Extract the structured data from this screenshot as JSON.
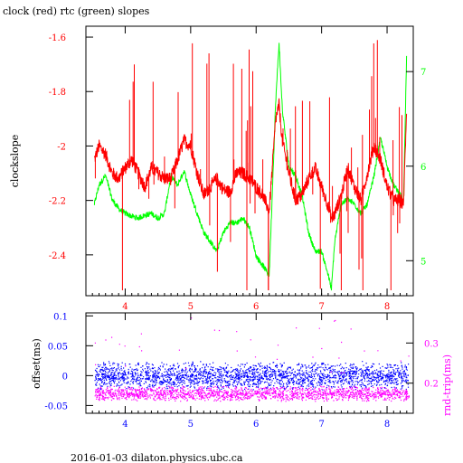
{
  "header": {
    "title": "clock (red) rtc (green) slopes",
    "footer": "2016-01-03  dilaton.physics.ubc.ca"
  },
  "colors": {
    "clock": "#ff0000",
    "rtc": "#00ff00",
    "offset": "#0000ff",
    "roundtrip": "#ff00ff",
    "left_axis_top": "#ff0000",
    "left_axis_bottom": "#0000ff",
    "x_axis_top": "#ff0000",
    "x_axis_bottom": "#0000ff"
  },
  "chart_data": [
    {
      "type": "line",
      "title": "clock (red) rtc (green) slopes",
      "xlabel": "",
      "ylabel": "clockslope",
      "xlim": [
        3.4,
        8.4
      ],
      "ylim": [
        -2.55,
        -1.56
      ],
      "y2lim": [
        4.63,
        7.48
      ],
      "x_ticks": [
        4,
        5,
        6,
        7,
        8
      ],
      "y_ticks": [
        -1.6,
        -1.8,
        -2,
        -2.2,
        -2.4
      ],
      "y2_ticks": [
        5,
        6,
        7
      ],
      "series": [
        {
          "name": "clock",
          "axis": "left",
          "x": [
            3.53,
            3.6,
            3.7,
            3.8,
            3.9,
            4.0,
            4.1,
            4.2,
            4.3,
            4.4,
            4.5,
            4.6,
            4.7,
            4.8,
            4.9,
            5.0,
            5.1,
            5.2,
            5.3,
            5.4,
            5.5,
            5.6,
            5.7,
            5.8,
            5.9,
            6.0,
            6.1,
            6.2,
            6.3,
            6.35,
            6.4,
            6.5,
            6.6,
            6.7,
            6.8,
            6.9,
            7.0,
            7.1,
            7.15,
            7.2,
            7.3,
            7.4,
            7.5,
            7.6,
            7.7,
            7.8,
            7.9,
            8.0,
            8.1,
            8.2,
            8.25,
            8.3
          ],
          "y": [
            -2.05,
            -2.0,
            -2.03,
            -2.1,
            -2.12,
            -2.08,
            -2.05,
            -2.1,
            -2.15,
            -2.08,
            -2.1,
            -2.12,
            -2.12,
            -2.05,
            -1.98,
            -2.0,
            -2.1,
            -2.18,
            -2.15,
            -2.12,
            -2.16,
            -2.17,
            -2.1,
            -2.1,
            -2.12,
            -2.15,
            -2.18,
            -2.24,
            -1.9,
            -1.85,
            -1.98,
            -2.1,
            -2.2,
            -2.18,
            -2.12,
            -2.08,
            -2.15,
            -2.22,
            -2.27,
            -2.25,
            -2.18,
            -2.08,
            -2.15,
            -2.2,
            -2.1,
            -2.0,
            -2.05,
            -2.15,
            -2.2,
            -2.2,
            -2.22,
            -1.85
          ]
        },
        {
          "name": "rtc",
          "axis": "right",
          "x": [
            3.53,
            3.6,
            3.7,
            3.8,
            3.9,
            4.0,
            4.1,
            4.2,
            4.3,
            4.4,
            4.5,
            4.6,
            4.7,
            4.8,
            4.9,
            5.0,
            5.1,
            5.2,
            5.3,
            5.4,
            5.5,
            5.6,
            5.7,
            5.8,
            5.9,
            6.0,
            6.1,
            6.2,
            6.3,
            6.35,
            6.4,
            6.5,
            6.6,
            6.7,
            6.8,
            6.9,
            7.0,
            7.1,
            7.15,
            7.2,
            7.3,
            7.4,
            7.5,
            7.6,
            7.7,
            7.8,
            7.9,
            8.0,
            8.1,
            8.2,
            8.25,
            8.3
          ],
          "y": [
            5.6,
            5.8,
            5.9,
            5.65,
            5.55,
            5.5,
            5.47,
            5.45,
            5.48,
            5.5,
            5.45,
            5.5,
            5.9,
            5.8,
            5.95,
            5.7,
            5.5,
            5.3,
            5.2,
            5.1,
            5.3,
            5.4,
            5.4,
            5.45,
            5.35,
            5.05,
            4.95,
            4.85,
            6.7,
            7.3,
            6.6,
            6.0,
            5.9,
            5.7,
            5.3,
            5.1,
            5.1,
            4.85,
            4.7,
            5.2,
            5.6,
            5.65,
            5.6,
            5.5,
            5.6,
            5.9,
            6.3,
            6.0,
            5.8,
            5.7,
            5.6,
            7.2
          ]
        }
      ]
    },
    {
      "type": "scatter",
      "title": "",
      "xlabel": "",
      "ylabel": "offset(ms)",
      "y2label": "rnd-trip(ms)",
      "xlim": [
        3.4,
        8.4
      ],
      "ylim": [
        -0.063,
        0.105
      ],
      "y2lim": [
        0.125,
        0.375
      ],
      "x_ticks": [
        4,
        5,
        6,
        7,
        8
      ],
      "y_ticks": [
        0.1,
        0.05,
        0,
        -0.05
      ],
      "y2_ticks": [
        0.3,
        0.2
      ],
      "series": [
        {
          "name": "offset",
          "axis": "left",
          "x_range": [
            3.53,
            8.33
          ],
          "y_center": 0.0,
          "y_spread": 0.025,
          "point_count": 2400
        },
        {
          "name": "rnd-trip",
          "axis": "right",
          "x_range": [
            3.53,
            8.33
          ],
          "y_center": 0.175,
          "y_spread": 0.02,
          "point_count": 1800
        }
      ]
    }
  ]
}
